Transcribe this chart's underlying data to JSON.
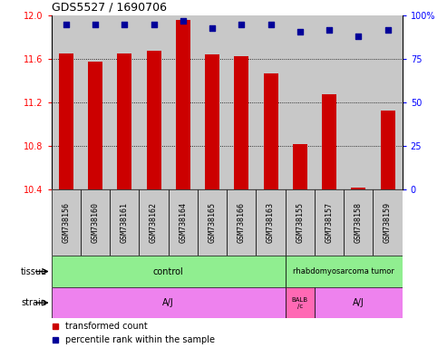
{
  "title": "GDS5527 / 1690706",
  "samples": [
    "GSM738156",
    "GSM738160",
    "GSM738161",
    "GSM738162",
    "GSM738164",
    "GSM738165",
    "GSM738166",
    "GSM738163",
    "GSM738155",
    "GSM738157",
    "GSM738158",
    "GSM738159"
  ],
  "transformed_count": [
    11.65,
    11.58,
    11.65,
    11.68,
    11.96,
    11.64,
    11.63,
    11.47,
    10.82,
    11.28,
    10.42,
    11.13
  ],
  "percentile_rank": [
    95,
    95,
    95,
    95,
    97,
    93,
    95,
    95,
    91,
    92,
    88,
    92
  ],
  "ylim_left": [
    10.4,
    12.0
  ],
  "ylim_right": [
    0,
    100
  ],
  "yticks_left": [
    10.4,
    10.8,
    11.2,
    11.6,
    12.0
  ],
  "yticks_right": [
    0,
    25,
    50,
    75,
    100
  ],
  "bar_color": "#CC0000",
  "dot_color": "#000099",
  "col_bg_color": "#C8C8C8",
  "tissue_control_color": "#90EE90",
  "tissue_tumor_color": "#90EE90",
  "strain_aj_color": "#EE82EE",
  "strain_balb_color": "#FF69B4",
  "legend_bar_color": "#CC0000",
  "legend_dot_color": "#000099",
  "title_fontsize": 9,
  "tick_fontsize": 7,
  "label_fontsize": 7,
  "sample_fontsize": 6
}
